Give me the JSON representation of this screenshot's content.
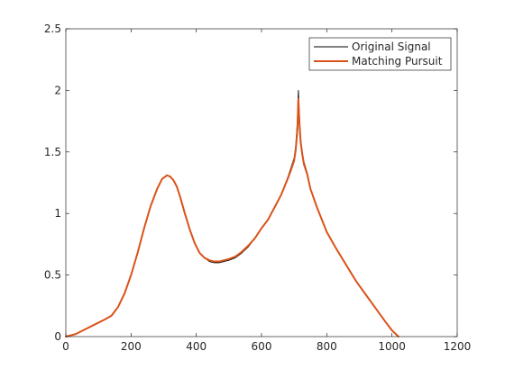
{
  "chart_data": {
    "type": "line",
    "title": "",
    "xlabel": "",
    "ylabel": "",
    "xlim": [
      0,
      1200
    ],
    "ylim": [
      0,
      2.5
    ],
    "xticks": [
      0,
      200,
      400,
      600,
      800,
      1000,
      1200
    ],
    "xtick_labels": [
      "0",
      "200",
      "400",
      "600",
      "800",
      "1000",
      "1200"
    ],
    "yticks": [
      0,
      0.5,
      1,
      1.5,
      2,
      2.5
    ],
    "ytick_labels": [
      "0",
      "0.5",
      "1",
      "1.5",
      "2",
      "2.5"
    ],
    "grid": false,
    "legend_position": "top-right",
    "series": [
      {
        "name": "Original Signal",
        "color": "#000000",
        "x": [
          0,
          30,
          60,
          90,
          120,
          140,
          160,
          180,
          200,
          220,
          240,
          260,
          280,
          295,
          310,
          320,
          330,
          340,
          350,
          365,
          380,
          395,
          410,
          425,
          440,
          455,
          470,
          485,
          500,
          520,
          540,
          560,
          580,
          600,
          620,
          640,
          660,
          680,
          690,
          700,
          705,
          710,
          713,
          716,
          720,
          725,
          730,
          740,
          750,
          770,
          800,
          830,
          860,
          890,
          920,
          950,
          980,
          1000,
          1020
        ],
        "values": [
          0.0,
          0.02,
          0.06,
          0.1,
          0.14,
          0.17,
          0.24,
          0.35,
          0.5,
          0.68,
          0.88,
          1.06,
          1.2,
          1.28,
          1.31,
          1.3,
          1.27,
          1.22,
          1.14,
          1.0,
          0.87,
          0.76,
          0.68,
          0.64,
          0.61,
          0.6,
          0.6,
          0.61,
          0.62,
          0.64,
          0.68,
          0.73,
          0.8,
          0.88,
          0.95,
          1.05,
          1.15,
          1.29,
          1.37,
          1.45,
          1.55,
          1.75,
          2.0,
          1.8,
          1.6,
          1.5,
          1.42,
          1.33,
          1.2,
          1.05,
          0.85,
          0.71,
          0.58,
          0.45,
          0.34,
          0.23,
          0.12,
          0.05,
          0.0
        ]
      },
      {
        "name": "Matching Pursuit",
        "color": "#d95319",
        "x": [
          0,
          30,
          60,
          90,
          120,
          140,
          160,
          180,
          200,
          220,
          240,
          260,
          280,
          295,
          310,
          320,
          330,
          340,
          350,
          365,
          380,
          395,
          410,
          425,
          440,
          455,
          470,
          485,
          500,
          520,
          540,
          560,
          580,
          600,
          620,
          640,
          660,
          680,
          690,
          700,
          705,
          710,
          713,
          716,
          720,
          725,
          730,
          740,
          750,
          770,
          800,
          830,
          860,
          890,
          920,
          950,
          980,
          1000,
          1020
        ],
        "values": [
          0.0,
          0.02,
          0.06,
          0.1,
          0.14,
          0.17,
          0.24,
          0.35,
          0.5,
          0.68,
          0.88,
          1.06,
          1.2,
          1.28,
          1.31,
          1.3,
          1.27,
          1.22,
          1.14,
          1.0,
          0.87,
          0.76,
          0.68,
          0.64,
          0.62,
          0.61,
          0.61,
          0.62,
          0.63,
          0.65,
          0.69,
          0.74,
          0.8,
          0.88,
          0.95,
          1.05,
          1.15,
          1.28,
          1.35,
          1.43,
          1.52,
          1.68,
          1.93,
          1.75,
          1.58,
          1.48,
          1.4,
          1.32,
          1.2,
          1.05,
          0.85,
          0.71,
          0.58,
          0.45,
          0.34,
          0.23,
          0.12,
          0.05,
          0.0
        ]
      }
    ]
  }
}
